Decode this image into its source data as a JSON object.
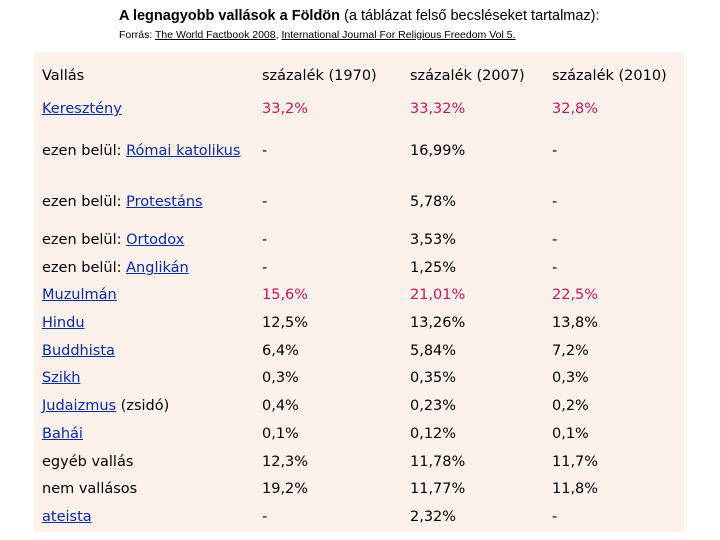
{
  "title": {
    "bold": "A legnagyobb vallások a Földön",
    "rest": " (a táblázat felső becsléseket tartalmaz):"
  },
  "source": {
    "prefix": "Forrás: ",
    "link1": "The World Factbook 2008",
    "sep": ", ",
    "link2": "International Journal For Religious Freedom Vol 5."
  },
  "colors": {
    "highlight": "#c2185b",
    "link": "#0b2a9a",
    "panel": "#fdf1ec"
  },
  "header": {
    "c0": "Vallás",
    "c1": "százalék (1970)",
    "c2": "százalék (2007)",
    "c3": "százalék (2010)"
  },
  "rows": [
    {
      "prefix": "",
      "name": "Keresztény",
      "suffix": "",
      "v1970": "33,2%",
      "v2007": "33,32%",
      "v2010": "32,8%",
      "highlight": true
    },
    {
      "prefix": "ezen belül: ",
      "name": "Római katolikus",
      "suffix": "",
      "v1970": "-",
      "v2007": "16,99%",
      "v2010": "-",
      "highlight": false
    },
    {
      "prefix": "ezen belül: ",
      "name": "Protestáns",
      "suffix": "",
      "v1970": "-",
      "v2007": "5,78%",
      "v2010": "-",
      "highlight": false
    },
    {
      "prefix": "ezen belül: ",
      "name": "Ortodox",
      "suffix": "",
      "v1970": "-",
      "v2007": "3,53%",
      "v2010": "-",
      "highlight": false
    },
    {
      "prefix": "ezen belül: ",
      "name": "Anglikán",
      "suffix": "",
      "v1970": "-",
      "v2007": "1,25%",
      "v2010": "-",
      "highlight": false
    },
    {
      "prefix": "",
      "name": "Muzulmán",
      "suffix": "",
      "v1970": "15,6%",
      "v2007": "21,01%",
      "v2010": "22,5%",
      "highlight": true
    },
    {
      "prefix": "",
      "name": "Hindu",
      "suffix": "",
      "v1970": "12,5%",
      "v2007": "13,26%",
      "v2010": "13,8%",
      "highlight": false
    },
    {
      "prefix": "",
      "name": "Buddhista",
      "suffix": "",
      "v1970": "6,4%",
      "v2007": "5,84%",
      "v2010": "7,2%",
      "highlight": false
    },
    {
      "prefix": "",
      "name": "Szikh",
      "suffix": "",
      "v1970": "0,3%",
      "v2007": "0,35%",
      "v2010": "0,3%",
      "highlight": false
    },
    {
      "prefix": "",
      "name": "Judaizmus",
      "suffix": " (zsidó)",
      "v1970": "0,4%",
      "v2007": "0,23%",
      "v2010": "0,2%",
      "highlight": false
    },
    {
      "prefix": "",
      "name": "Bahái",
      "suffix": "",
      "v1970": "0,1%",
      "v2007": "0,12%",
      "v2010": "0,1%",
      "highlight": false
    },
    {
      "prefix": "egyéb vallás",
      "name": "",
      "suffix": "",
      "v1970": "12,3%",
      "v2007": "11,78%",
      "v2010": "11,7%",
      "highlight": false
    },
    {
      "prefix": "nem vallásos",
      "name": "",
      "suffix": "",
      "v1970": "19,2%",
      "v2007": "11,77%",
      "v2010": "11,8%",
      "highlight": false
    },
    {
      "prefix": "",
      "name": "ateista",
      "suffix": "",
      "v1970": "-",
      "v2007": "2,32%",
      "v2010": "-",
      "highlight": false
    }
  ]
}
